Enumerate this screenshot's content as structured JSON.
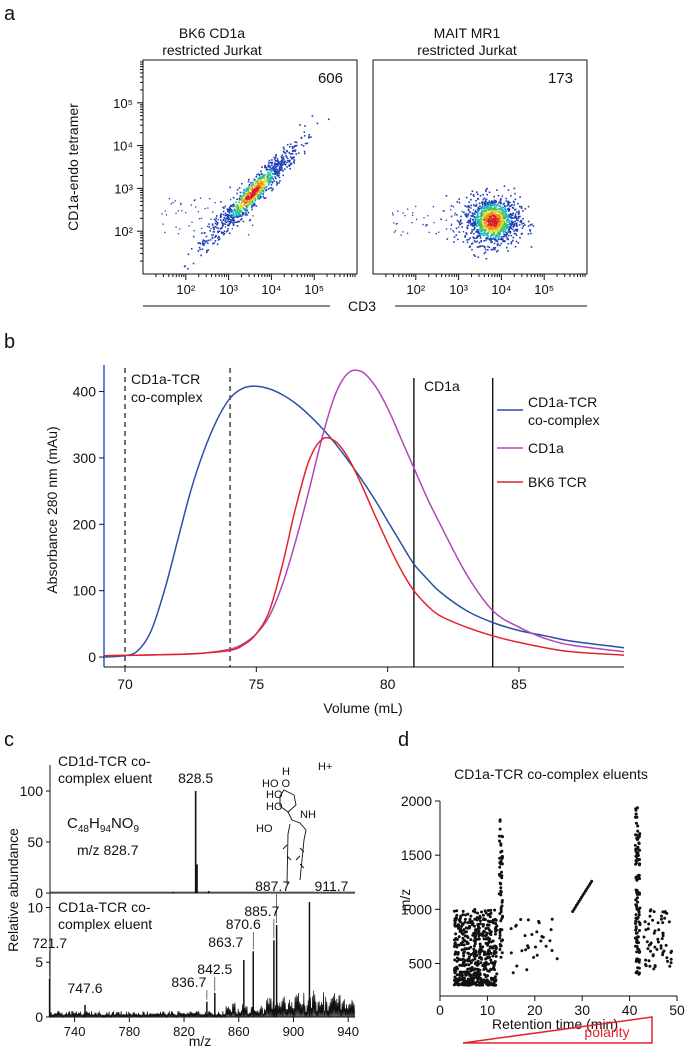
{
  "panels": {
    "a": "a",
    "b": "b",
    "c": "c",
    "d": "d"
  },
  "colors": {
    "blue": "#2b4fa8",
    "purple": "#b048b5",
    "red": "#e3242b",
    "axis_blue": "#2d5bd6",
    "black": "#111111"
  },
  "chart_data": [
    {
      "id": "a1",
      "type": "scatter",
      "title_line1": "BK6 CD1a",
      "title_line2": "restricted Jurkat",
      "count": "606",
      "ylabel": "CD1a-endo tetramer",
      "xscale": "log",
      "yscale": "log",
      "xlim": [
        10,
        1000000
      ],
      "ylim": [
        10,
        1000000
      ],
      "xticks": [
        "10²",
        "10³",
        "10⁴",
        "10⁵"
      ],
      "yticks": [
        "10²",
        "10³",
        "10⁴",
        "10⁵"
      ],
      "population": {
        "center_x": 3500,
        "center_y": 800,
        "shape": "diagonal",
        "n": 900
      }
    },
    {
      "id": "a2",
      "type": "scatter",
      "title_line1": "MAIT MR1",
      "title_line2": "restricted Jurkat",
      "count": "173",
      "xscale": "log",
      "yscale": "log",
      "xlim": [
        10,
        1000000
      ],
      "ylim": [
        10,
        1000000
      ],
      "xticks": [
        "10²",
        "10³",
        "10⁴",
        "10⁵"
      ],
      "population": {
        "center_x": 6000,
        "center_y": 180,
        "shape": "round",
        "n": 1100
      },
      "shared_xlabel": "CD3"
    },
    {
      "id": "b",
      "type": "line",
      "xlabel": "Volume (mL)",
      "ylabel": "Absorbance 280 nm (mAu)",
      "xlim": [
        69.2,
        89
      ],
      "ylim": [
        -15,
        440
      ],
      "xticks": [
        70,
        75,
        80,
        85
      ],
      "yticks": [
        0,
        100,
        200,
        300,
        400
      ],
      "series": [
        {
          "name_line1": "CD1a-TCR",
          "name_line2": "co-complex",
          "color": "#2b4fa8",
          "x": [
            69.2,
            70,
            70.5,
            71,
            71.5,
            72,
            72.5,
            73,
            73.5,
            74,
            74.5,
            75,
            75.5,
            76,
            76.5,
            77,
            77.5,
            78,
            78.5,
            79,
            79.5,
            80,
            80.5,
            81,
            81.5,
            82,
            83,
            84,
            85,
            86,
            87,
            89
          ],
          "y": [
            0,
            2,
            10,
            40,
            100,
            175,
            250,
            310,
            357,
            390,
            405,
            408,
            404,
            395,
            382,
            365,
            345,
            322,
            296,
            268,
            238,
            205,
            172,
            140,
            118,
            98,
            70,
            52,
            40,
            32,
            24,
            14
          ]
        },
        {
          "name": "CD1a",
          "color": "#b048b5",
          "x": [
            69.2,
            72,
            73,
            74,
            74.5,
            75,
            75.5,
            76,
            76.5,
            77,
            77.5,
            78,
            78.5,
            79,
            79.5,
            80,
            80.5,
            81,
            81.5,
            82,
            83,
            84,
            85,
            86,
            87,
            89
          ],
          "y": [
            2,
            4,
            6,
            12,
            20,
            35,
            62,
            110,
            175,
            250,
            330,
            395,
            428,
            430,
            410,
            375,
            330,
            285,
            240,
            200,
            125,
            70,
            45,
            28,
            18,
            8
          ]
        },
        {
          "name": "BK6 TCR",
          "color": "#e3242b",
          "x": [
            69.2,
            72,
            73,
            74,
            74.5,
            75,
            75.5,
            76,
            76.5,
            77,
            77.5,
            78,
            78.5,
            79,
            79.5,
            80,
            80.5,
            81,
            81.5,
            82,
            83,
            84,
            85,
            86,
            87,
            89
          ],
          "y": [
            2,
            4,
            6,
            10,
            18,
            35,
            70,
            140,
            225,
            295,
            328,
            325,
            300,
            260,
            215,
            172,
            132,
            100,
            78,
            62,
            45,
            32,
            22,
            14,
            8,
            3
          ]
        }
      ],
      "dashed_lines": [
        70,
        74
      ],
      "solid_lines": [
        81,
        84
      ],
      "annotations": {
        "cocomplex_line1": "CD1a-TCR",
        "cocomplex_line2": "co-complex",
        "cd1a": "CD1a"
      }
    },
    {
      "id": "c",
      "type": "bar",
      "subtype": "mass-spectrum",
      "xlabel": "m/z",
      "ylabel": "Relative abundance",
      "xlim": [
        722,
        945
      ],
      "xticks": [
        740,
        780,
        820,
        860,
        900,
        940
      ],
      "top": {
        "label_line1": "CD1d-TCR co-",
        "label_line2": "complex eluent",
        "yticks": [
          0,
          50,
          100
        ],
        "formula": {
          "c": "C",
          "c_n": "48",
          "h": "H",
          "h_n": "94",
          "rest": "NO",
          "o_n": "9"
        },
        "mz_text": "m/z 828.7",
        "structure_ion": "H+",
        "peaks": [
          {
            "mz": 828.5,
            "value": 100,
            "label": "828.5"
          },
          {
            "mz": 829.5,
            "value": 28
          },
          {
            "mz": 812,
            "value": 1
          },
          {
            "mz": 838,
            "value": 2
          }
        ]
      },
      "bottom": {
        "label_line1": "CD1a-TCR co-",
        "label_line2": "complex eluent",
        "yticks": [
          0,
          5,
          10
        ],
        "peaks": [
          {
            "mz": 721.7,
            "value": 3.5,
            "label": "721.7"
          },
          {
            "mz": 747.6,
            "value": 1.1,
            "label": "747.6"
          },
          {
            "mz": 836.7,
            "value": 1.4,
            "label": "836.7"
          },
          {
            "mz": 842.5,
            "value": 2.2,
            "label": "842.5"
          },
          {
            "mz": 863.7,
            "value": 5.2,
            "label": "863.7"
          },
          {
            "mz": 870.6,
            "value": 6.0,
            "label": "870.6"
          },
          {
            "mz": 885.7,
            "value": 7.0,
            "label": "885.7"
          },
          {
            "mz": 887.7,
            "value": 8.4,
            "label": "887.7"
          },
          {
            "mz": 911.7,
            "value": 10.5,
            "label": "911.7"
          }
        ]
      }
    },
    {
      "id": "d",
      "type": "scatter",
      "title": "CD1a-TCR co-complex eluents",
      "xlabel": "Retention time (min)",
      "ylabel": "m/z",
      "xlim": [
        0,
        50
      ],
      "ylim": [
        200,
        2000
      ],
      "xticks": [
        0,
        10,
        20,
        30,
        40,
        50
      ],
      "yticks": [
        500,
        1000,
        1500,
        2000
      ],
      "polarity_label": "polarity",
      "clusters": [
        {
          "x_range": [
            3,
            12
          ],
          "y_range": [
            300,
            1000
          ],
          "n": 500
        },
        {
          "x_range": [
            12.5,
            13.2
          ],
          "y_range": [
            500,
            1850
          ],
          "n": 60
        },
        {
          "x_range": [
            41.2,
            42.2
          ],
          "y_range": [
            400,
            1950
          ],
          "n": 120
        },
        {
          "x_range": [
            43,
            49
          ],
          "y_range": [
            450,
            1000
          ],
          "n": 60
        },
        {
          "x_range": [
            28,
            32
          ],
          "y_range": [
            980,
            1260
          ],
          "n": 16
        },
        {
          "x_range": [
            15,
            25
          ],
          "y_range": [
            400,
            950
          ],
          "n": 30
        }
      ]
    }
  ]
}
